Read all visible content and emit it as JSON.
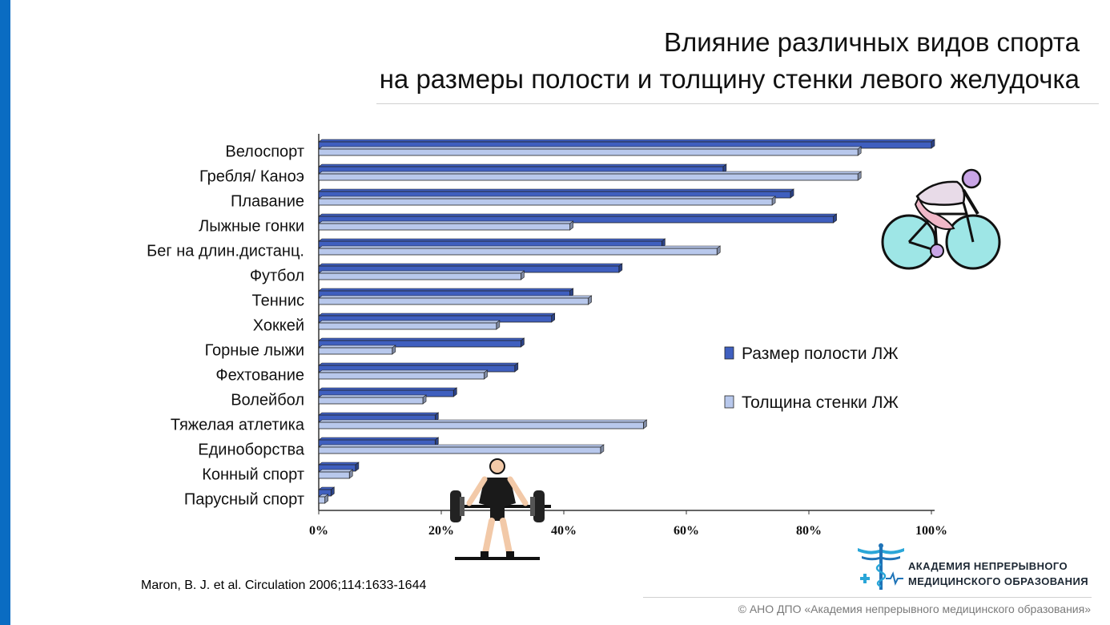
{
  "title": {
    "line1": "Влияние различных видов спорта",
    "line2": "на размеры полости и толщину стенки левого  желудочка"
  },
  "citation": "Maron,  B. J. et al. Circulation 2006;114:1633-1644",
  "logo": {
    "line1": "АКАДЕМИЯ НЕПРЕРЫВНОГО",
    "line2": "МЕДИЦИНСКОГО ОБРАЗОВАНИЯ"
  },
  "footer": "© АНО ДПО «Академия непрерывного медицинского образования»",
  "colors": {
    "series1": "#3f5fbf",
    "series2": "#b8c8ec",
    "accent_stripe": "#0a6cc2"
  },
  "icons": [
    "cyclist-illustration",
    "weightlifter-illustration",
    "medical-caduceus-logo"
  ],
  "chart_data": {
    "type": "bar",
    "orientation": "horizontal",
    "categories": [
      "Велоспорт",
      "Гребля/ Каноэ",
      "Плавание",
      "Лыжные гонки",
      "Бег на длин.дистанц.",
      "Футбол",
      "Теннис",
      "Хоккей",
      "Горные лыжи",
      "Фехтование",
      "Волейбол",
      "Тяжелая атлетика",
      "Единоборства",
      "Конный спорт",
      "Парусный спорт"
    ],
    "series": [
      {
        "name": "Размер полости ЛЖ",
        "values": [
          100,
          66,
          77,
          84,
          56,
          49,
          41,
          38,
          33,
          32,
          22,
          19,
          19,
          6,
          2
        ]
      },
      {
        "name": "Толщина стенки ЛЖ",
        "values": [
          88,
          88,
          74,
          41,
          65,
          33,
          44,
          29,
          12,
          27,
          17,
          53,
          46,
          5,
          1
        ]
      }
    ],
    "xticks": [
      "0%",
      "20%",
      "40%",
      "60%",
      "80%",
      "100%"
    ],
    "xlim": [
      0,
      100
    ],
    "legend_position": "right"
  }
}
